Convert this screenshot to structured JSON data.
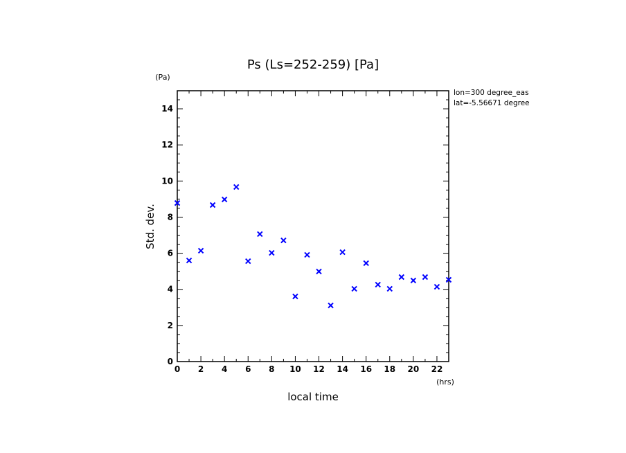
{
  "chart_data": {
    "type": "scatter",
    "title": "Ps (Ls=252-259) [Pa]",
    "xlabel": "local time",
    "xunit": "(hrs)",
    "ylabel": "Std. dev.",
    "yunit": "(Pa)",
    "annotations": [
      "lon=300 degree_eas",
      "lat=-5.56671 degree"
    ],
    "xlim": [
      0,
      23
    ],
    "ylim": [
      0,
      15
    ],
    "xticks": [
      0,
      2,
      4,
      6,
      8,
      10,
      12,
      14,
      16,
      18,
      20,
      22
    ],
    "yticks": [
      0,
      2,
      4,
      6,
      8,
      10,
      12,
      14
    ],
    "marker": "x",
    "color": "#0000ff",
    "x": [
      0,
      1,
      2,
      3,
      4,
      5,
      6,
      7,
      8,
      9,
      10,
      11,
      12,
      13,
      14,
      15,
      16,
      17,
      18,
      19,
      20,
      21,
      22,
      23
    ],
    "y": [
      8.78,
      5.6,
      6.14,
      8.67,
      8.98,
      9.67,
      5.56,
      7.06,
      6.02,
      6.71,
      3.61,
      5.91,
      4.99,
      3.11,
      6.06,
      4.03,
      5.45,
      4.26,
      4.03,
      4.68,
      4.49,
      4.68,
      4.14,
      4.53
    ]
  }
}
